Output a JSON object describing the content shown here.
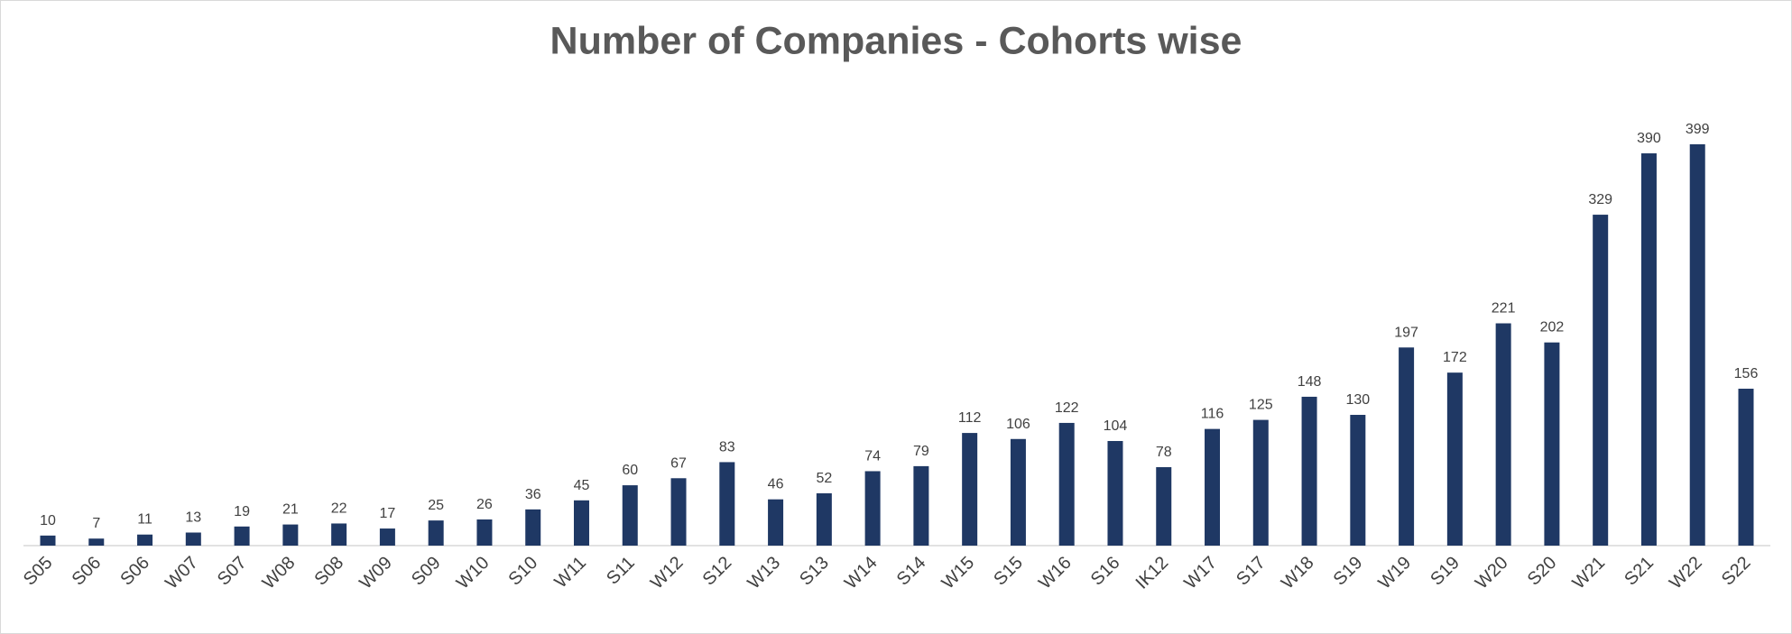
{
  "chart_data": {
    "type": "bar",
    "title": "Number of Companies - Cohorts wise",
    "categories": [
      "S05",
      "S06",
      "S06",
      "W07",
      "S07",
      "W08",
      "S08",
      "W09",
      "S09",
      "W10",
      "S10",
      "W11",
      "S11",
      "W12",
      "S12",
      "W13",
      "S13",
      "W14",
      "S14",
      "W15",
      "S15",
      "W16",
      "S16",
      "IK12",
      "W17",
      "S17",
      "W18",
      "S19",
      "W19",
      "S19",
      "W20",
      "S20",
      "W21",
      "S21",
      "W22",
      "S22"
    ],
    "values": [
      10,
      7,
      11,
      13,
      19,
      21,
      22,
      17,
      25,
      26,
      36,
      45,
      60,
      67,
      83,
      46,
      52,
      74,
      79,
      112,
      106,
      122,
      104,
      78,
      116,
      125,
      148,
      130,
      197,
      172,
      221,
      202,
      329,
      390,
      399,
      156
    ],
    "color": "#1f3864"
  }
}
